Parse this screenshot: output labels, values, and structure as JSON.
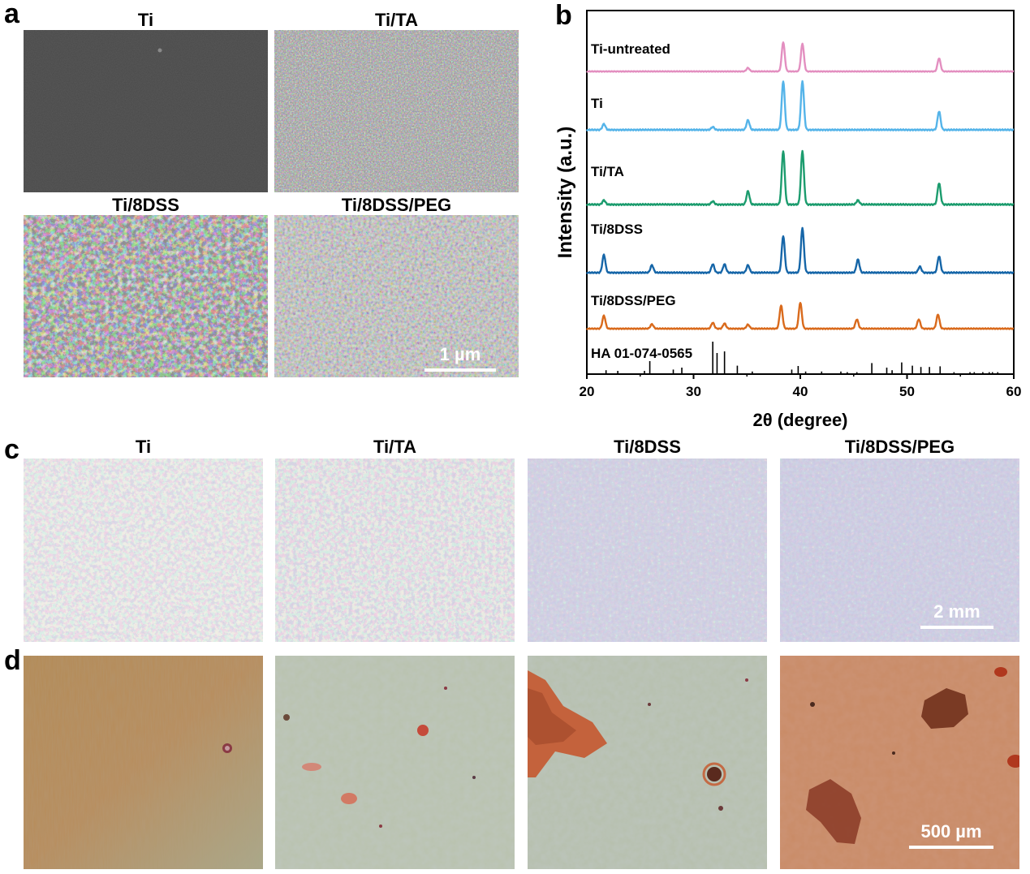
{
  "panels": {
    "a": {
      "letter": "a",
      "images": [
        {
          "label": "Ti"
        },
        {
          "label": "Ti/TA"
        },
        {
          "label": "Ti/8DSS"
        },
        {
          "label": "Ti/8DSS/PEG"
        }
      ],
      "scale_bar": "1 µm"
    },
    "b": {
      "letter": "b"
    },
    "c": {
      "letter": "c",
      "images": [
        {
          "label": "Ti"
        },
        {
          "label": "Ti/TA"
        },
        {
          "label": "Ti/8DSS"
        },
        {
          "label": "Ti/8DSS/PEG"
        }
      ],
      "scale_bar": "2 mm"
    },
    "d": {
      "letter": "d",
      "scale_bar": "500 µm"
    }
  },
  "colors": {
    "ti_untreated": "#e38fc0",
    "ti": "#55b4e9",
    "ti_ta": "#1c9c6e",
    "ti_8dss": "#1666a8",
    "ti_8dss_peg": "#d96a1c",
    "reference": "#000000"
  },
  "chart_data": {
    "type": "line",
    "xlabel": "2θ (degree)",
    "ylabel": "Intensity (a.u.)",
    "xlim": [
      20,
      60
    ],
    "xticks": [
      20,
      30,
      40,
      50,
      60
    ],
    "yticks_shown": false,
    "stacked": true,
    "series": [
      {
        "name": "Ti-untreated",
        "peaks": [
          [
            35.1,
            0.12
          ],
          [
            38.4,
            1.0
          ],
          [
            40.2,
            0.95
          ],
          [
            53.0,
            0.45
          ]
        ]
      },
      {
        "name": "Ti",
        "peaks": [
          [
            21.6,
            0.12
          ],
          [
            31.8,
            0.06
          ],
          [
            35.1,
            0.2
          ],
          [
            38.4,
            1.0
          ],
          [
            40.2,
            1.0
          ],
          [
            53.0,
            0.38
          ]
        ]
      },
      {
        "name": "Ti/TA",
        "peaks": [
          [
            21.6,
            0.08
          ],
          [
            31.8,
            0.06
          ],
          [
            35.1,
            0.25
          ],
          [
            38.4,
            1.0
          ],
          [
            40.2,
            1.0
          ],
          [
            45.4,
            0.08
          ],
          [
            53.0,
            0.4
          ]
        ]
      },
      {
        "name": "Ti/8DSS",
        "peaks": [
          [
            21.6,
            0.38
          ],
          [
            26.1,
            0.16
          ],
          [
            31.8,
            0.18
          ],
          [
            32.9,
            0.18
          ],
          [
            35.1,
            0.16
          ],
          [
            38.4,
            0.78
          ],
          [
            40.2,
            0.95
          ],
          [
            45.4,
            0.28
          ],
          [
            51.2,
            0.13
          ],
          [
            53.0,
            0.35
          ]
        ]
      },
      {
        "name": "Ti/8DSS/PEG",
        "peaks": [
          [
            21.6,
            0.35
          ],
          [
            26.1,
            0.12
          ],
          [
            31.8,
            0.16
          ],
          [
            32.9,
            0.14
          ],
          [
            35.1,
            0.11
          ],
          [
            38.2,
            0.62
          ],
          [
            40.0,
            0.7
          ],
          [
            45.3,
            0.25
          ],
          [
            51.1,
            0.25
          ],
          [
            52.9,
            0.38
          ]
        ]
      },
      {
        "name": "HA 01-074-0565",
        "sticks": [
          [
            21.8,
            0.12
          ],
          [
            22.9,
            0.1
          ],
          [
            25.4,
            0.1
          ],
          [
            25.9,
            0.4
          ],
          [
            28.1,
            0.14
          ],
          [
            28.9,
            0.2
          ],
          [
            31.8,
            1.0
          ],
          [
            32.2,
            0.65
          ],
          [
            32.9,
            0.7
          ],
          [
            34.1,
            0.26
          ],
          [
            35.5,
            0.08
          ],
          [
            39.2,
            0.14
          ],
          [
            39.8,
            0.25
          ],
          [
            40.5,
            0.08
          ],
          [
            42.0,
            0.08
          ],
          [
            43.8,
            0.08
          ],
          [
            44.4,
            0.06
          ],
          [
            45.3,
            0.06
          ],
          [
            46.7,
            0.34
          ],
          [
            48.1,
            0.2
          ],
          [
            48.6,
            0.12
          ],
          [
            49.5,
            0.36
          ],
          [
            50.5,
            0.26
          ],
          [
            51.3,
            0.22
          ],
          [
            52.1,
            0.22
          ],
          [
            53.1,
            0.24
          ],
          [
            54.4,
            0.06
          ],
          [
            55.9,
            0.06
          ],
          [
            56.3,
            0.06
          ],
          [
            57.1,
            0.06
          ],
          [
            57.7,
            0.06
          ],
          [
            58.0,
            0.06
          ],
          [
            58.5,
            0.06
          ]
        ]
      }
    ]
  }
}
